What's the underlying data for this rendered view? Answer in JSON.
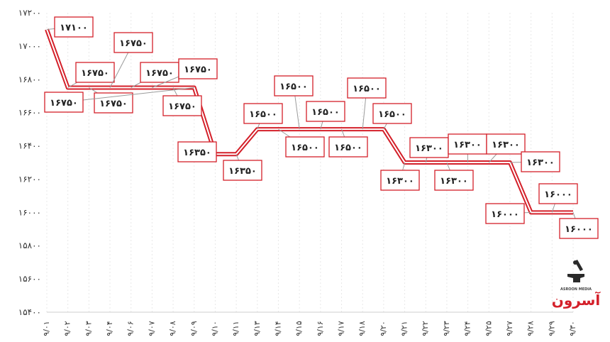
{
  "chart_data": {
    "type": "line",
    "title": "",
    "xlabel": "",
    "ylabel": "",
    "categories": [
      "۹/۰۱",
      "۹/۰۲",
      "۹/۰۳",
      "۹/۰۴",
      "۹/۰۶",
      "۹/۰۷",
      "۹/۰۸",
      "۹/۰۹",
      "۹/۱۰",
      "۹/۱۱",
      "۹/۱۳",
      "۹/۱۴",
      "۹/۱۵",
      "۹/۱۶",
      "۹/۱۷",
      "۹/۱۸",
      "۹/۲۰",
      "۹/۲۱",
      "۹/۲۲",
      "۹/۲۳",
      "۹/۲۴",
      "۹/۲۵",
      "۹/۲۷",
      "۹/۲۸",
      "۹/۲۹",
      "۹/۳۰"
    ],
    "values": [
      17100,
      16750,
      16750,
      16750,
      16750,
      16750,
      16750,
      16750,
      16350,
      16350,
      16500,
      16500,
      16500,
      16500,
      16500,
      16500,
      16500,
      16300,
      16300,
      16300,
      16300,
      16300,
      16300,
      16000,
      16000,
      16000
    ],
    "data_labels": [
      "۱۷۱۰۰",
      "۱۶۷۵۰",
      "۱۶۷۵۰",
      "۱۶۷۵۰",
      "۱۶۷۵۰",
      "۱۶۷۵۰",
      "۱۶۷۵۰",
      "۱۶۷۵۰",
      "۱۶۳۵۰",
      "۱۶۳۵۰",
      "۱۶۵۰۰",
      "۱۶۵۰۰",
      "۱۶۵۰۰",
      "۱۶۵۰۰",
      "۱۶۵۰۰",
      "۱۶۵۰۰",
      "۱۶۵۰۰",
      "۱۶۳۰۰",
      "۱۶۳۰۰",
      "۱۶۳۰۰",
      "۱۶۳۰۰",
      "۱۶۳۰۰",
      "۱۶۳۰۰",
      "۱۶۰۰۰",
      "۱۶۰۰۰",
      "۱۶۰۰۰"
    ],
    "y_ticks": [
      17200,
      17000,
      16800,
      16600,
      16400,
      16200,
      16000,
      15800,
      15600,
      15400
    ],
    "y_tick_labels": [
      "۱۷۲۰۰",
      "۱۷۰۰۰",
      "۱۶۸۰۰",
      "۱۶۶۰۰",
      "۱۶۴۰۰",
      "۱۶۲۰۰",
      "۱۶۰۰۰",
      "۱۵۸۰۰",
      "۱۵۶۰۰",
      "۱۵۴۰۰"
    ],
    "ylim": [
      15400,
      17200
    ],
    "grid": true,
    "legend": "none",
    "line_color": "#d4202a"
  },
  "watermark": {
    "brand_fa": "آسرون",
    "brand_en": "ASROON MEDIA"
  }
}
